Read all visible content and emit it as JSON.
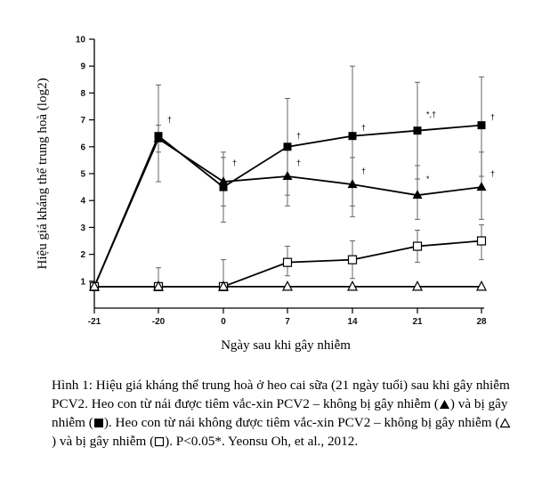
{
  "chart_data": {
    "type": "line",
    "xlabel": "Ngày sau khi gây nhiễm",
    "ylabel": "Hiệu giá kháng thể trung hoà (log2)",
    "x": [
      -21,
      -20,
      0,
      7,
      14,
      21,
      28
    ],
    "x_tick_labels": [
      "-21",
      "-20",
      "0",
      "7",
      "14",
      "21",
      "28"
    ],
    "y_ticks": [
      1,
      2,
      3,
      4,
      5,
      6,
      7,
      8,
      9,
      10
    ],
    "ylim": [
      0,
      10
    ],
    "grid": false,
    "series": [
      {
        "key": "vaccinated_infected",
        "marker": "filled-square",
        "values": [
          0.8,
          6.4,
          4.5,
          6.0,
          6.4,
          6.6,
          6.8
        ],
        "error_upper": [
          0.8,
          8.3,
          5.8,
          7.8,
          9.0,
          8.4,
          8.6
        ],
        "error_lower": [
          0.8,
          4.7,
          3.2,
          4.2,
          3.8,
          4.8,
          4.9
        ]
      },
      {
        "key": "vaccinated_uninfected",
        "marker": "filled-triangle",
        "values": [
          0.8,
          6.3,
          4.7,
          4.9,
          4.6,
          4.2,
          4.5
        ],
        "error_upper": [
          0.8,
          6.8,
          5.6,
          6.0,
          5.6,
          5.3,
          5.8
        ],
        "error_lower": [
          0.8,
          5.8,
          3.8,
          3.8,
          3.4,
          3.3,
          3.3
        ]
      },
      {
        "key": "unvaccinated_infected",
        "marker": "open-square",
        "values": [
          0.8,
          0.8,
          0.8,
          1.7,
          1.8,
          2.3,
          2.5
        ],
        "error_upper": [
          0.8,
          1.5,
          1.8,
          2.3,
          2.5,
          2.9,
          3.1
        ],
        "error_lower": [
          0.8,
          0.8,
          0.8,
          1.2,
          1.1,
          1.7,
          1.8
        ]
      },
      {
        "key": "unvaccinated_uninfected",
        "marker": "open-triangle",
        "values": [
          0.8,
          0.8,
          0.8,
          0.8,
          0.8,
          0.8,
          0.8
        ],
        "error_upper": [
          0.8,
          0.8,
          0.8,
          0.8,
          0.8,
          0.8,
          0.8
        ],
        "error_lower": [
          0.8,
          0.8,
          0.8,
          0.8,
          0.8,
          0.8,
          0.8
        ]
      }
    ],
    "annotations": [
      {
        "text": "†",
        "x": -20,
        "y": 6.9
      },
      {
        "text": "†",
        "x": 0,
        "y": 5.3
      },
      {
        "text": "†",
        "x": 7,
        "y": 6.3
      },
      {
        "text": "†",
        "x": 7,
        "y": 5.3
      },
      {
        "text": "†",
        "x": 14,
        "y": 6.6
      },
      {
        "text": "†",
        "x": 14,
        "y": 5.0
      },
      {
        "text": "*,†",
        "x": 21,
        "y": 7.1
      },
      {
        "text": "*",
        "x": 21,
        "y": 4.7
      },
      {
        "text": "†",
        "x": 28,
        "y": 7.0
      },
      {
        "text": "†",
        "x": 28,
        "y": 4.9
      }
    ]
  },
  "caption": {
    "part1": "Hình 1: Hiệu giá kháng thể trung hoà ở heo cai sữa (21 ngày tuổi) sau khi gây nhiễm PCV2. Heo con từ nái được tiêm vắc-xin PCV2 – không bị gây nhiễm (",
    "part2": ") và bị gây nhiễm (",
    "part3": "). Heo con từ nái không được tiêm vắc-xin PCV2 – không bị gây nhiễm (",
    "part4": ") và bị gây nhiễm (",
    "part5": "). P<0.05*. Yeonsu Oh, et al., 2012."
  }
}
